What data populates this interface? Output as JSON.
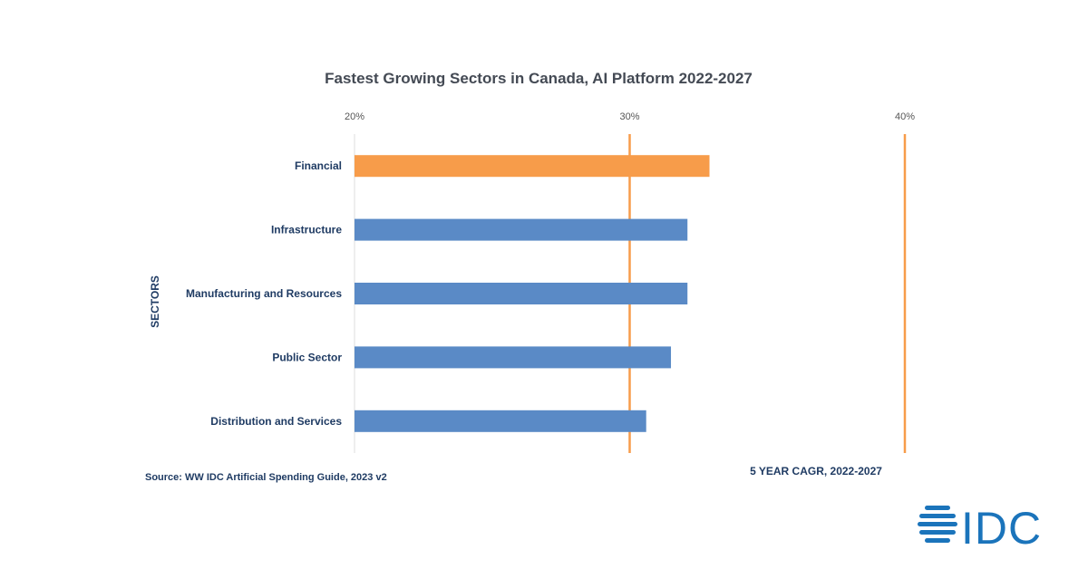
{
  "chart_data": {
    "type": "bar",
    "orientation": "horizontal",
    "title": "Fastest Growing Sectors in Canada, AI Platform 2022-2027",
    "categories": [
      "Financial",
      "Infrastructure",
      "Manufacturing and Resources",
      "Public Sector",
      "Distribution and Services"
    ],
    "values": [
      32.9,
      32.1,
      32.1,
      31.5,
      30.6
    ],
    "highlight_index": 0,
    "colors": {
      "highlight": "#f79c4a",
      "bar": "#5a8ac6",
      "reference_line": "#f79c4a",
      "text": "#1f3b63"
    },
    "xlim": [
      20,
      40
    ],
    "xticks": [
      "20%",
      "30%",
      "40%"
    ],
    "xtick_values": [
      20,
      30,
      40
    ],
    "reference_lines": [
      30,
      40
    ],
    "xlabel": "5 YEAR CAGR, 2022-2027",
    "ylabel": "SECTORS",
    "axis_position": "top"
  },
  "source": "Source: WW IDC Artificial Spending Guide, 2023 v2",
  "logo": {
    "text": "IDC",
    "color": "#1b74bb"
  }
}
